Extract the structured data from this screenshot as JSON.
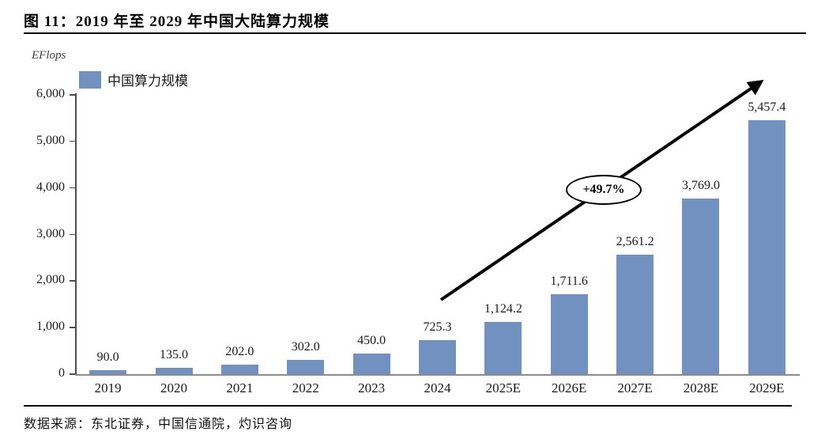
{
  "header": {
    "title": "图 11：2019 年至 2029 年中国大陆算力规模"
  },
  "chart": {
    "unit": "EFlops",
    "legend": "中国算力规模",
    "annotation": {
      "label": "+49.7%"
    }
  },
  "chart_data": {
    "type": "bar",
    "title": "图 11：2019 年至 2029 年中国大陆算力规模",
    "unit_label": "EFlops",
    "legend_entries": [
      "中国算力规模"
    ],
    "legend_position": "top-left",
    "categories": [
      "2019",
      "2020",
      "2021",
      "2022",
      "2023",
      "2024",
      "2025E",
      "2026E",
      "2027E",
      "2028E",
      "2029E"
    ],
    "values": [
      90.0,
      135.0,
      202.0,
      302.0,
      450.0,
      725.3,
      1124.2,
      1711.6,
      2561.2,
      3769.0,
      5457.4
    ],
    "value_labels": [
      "90.0",
      "135.0",
      "202.0",
      "302.0",
      "450.0",
      "725.3",
      "1,124.2",
      "1,711.6",
      "2,561.2",
      "3,769.0",
      "5,457.4"
    ],
    "ylim": [
      0,
      6000
    ],
    "yticks": [
      0,
      1000,
      2000,
      3000,
      4000,
      5000,
      6000
    ],
    "ytick_labels": [
      "0",
      "1,000",
      "2,000",
      "3,000",
      "4,000",
      "5,000",
      "6,000"
    ],
    "grid": false,
    "bar_color": "#7191C1",
    "annotation": "+49.7%",
    "annotation_meaning": "CAGR arrow from 2024 to 2029E"
  },
  "footer": {
    "source": "数据来源：东北证券，中国信通院，灼识咨询"
  }
}
